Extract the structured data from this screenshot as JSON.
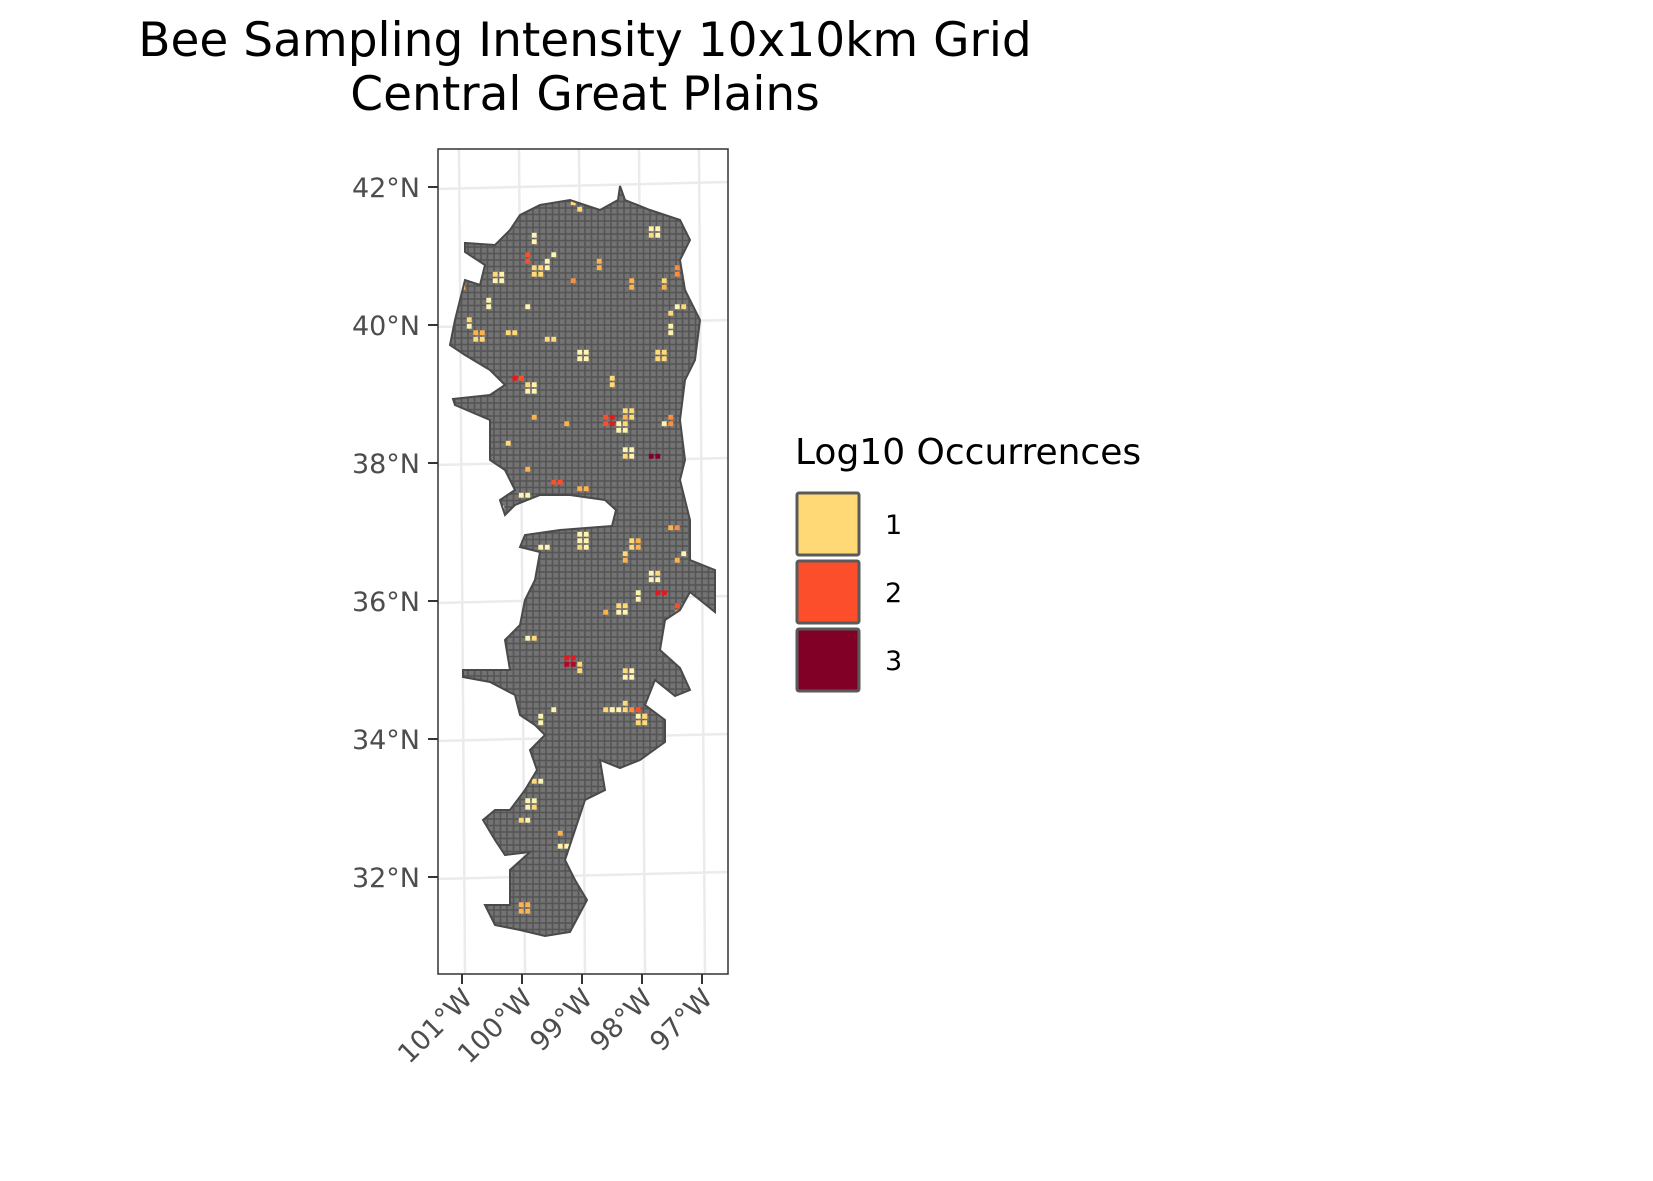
{
  "chart_data": {
    "type": "map",
    "title": [
      "Bee Sampling Intensity 10x10km Grid",
      "Central Great Plains"
    ],
    "xlabel": "",
    "ylabel": "",
    "x_ticks": [
      {
        "value": -101,
        "label": "101°W"
      },
      {
        "value": -100,
        "label": "100°W"
      },
      {
        "value": -99,
        "label": "99°W"
      },
      {
        "value": -98,
        "label": "98°W"
      },
      {
        "value": -97,
        "label": "97°W"
      }
    ],
    "y_ticks": [
      {
        "value": 42,
        "label": "42°N"
      },
      {
        "value": 40,
        "label": "40°N"
      },
      {
        "value": 38,
        "label": "38°N"
      },
      {
        "value": 36,
        "label": "36°N"
      },
      {
        "value": 34,
        "label": "34°N"
      },
      {
        "value": 32,
        "label": "32°N"
      }
    ],
    "grid": true,
    "legend": {
      "title": "Log10 Occurrences",
      "placement": "right",
      "entries": [
        {
          "label": "1",
          "color": "#FED976"
        },
        {
          "label": "2",
          "color": "#FC4E2A"
        },
        {
          "label": "3",
          "color": "#800026"
        }
      ]
    },
    "cell_fill_empty": "#6B6B6B",
    "cell_palette": [
      "#FFF3B0",
      "#FED976",
      "#FEB24C",
      "#FD8D3C",
      "#FC4E2A",
      "#E31A1C",
      "#BD0026",
      "#800026"
    ]
  }
}
